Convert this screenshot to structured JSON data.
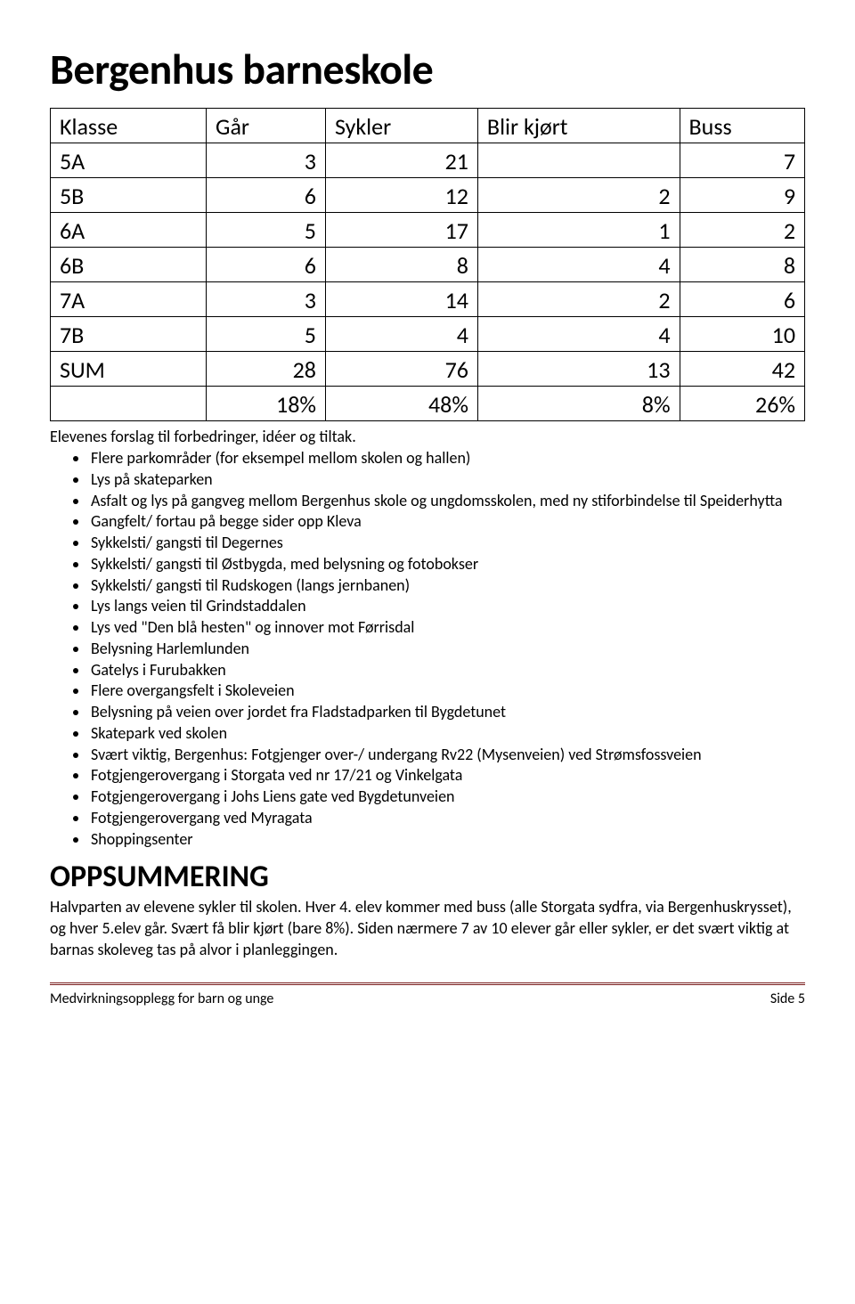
{
  "title": "Bergenhus barneskole",
  "table": {
    "columns": [
      "Klasse",
      "Går",
      "Sykler",
      "Blir kjørt",
      "Buss"
    ],
    "rows": [
      [
        "5A",
        "3",
        "21",
        "",
        "7"
      ],
      [
        "5B",
        "6",
        "12",
        "2",
        "9"
      ],
      [
        "6A",
        "5",
        "17",
        "1",
        "2"
      ],
      [
        "6B",
        "6",
        "8",
        "4",
        "8"
      ],
      [
        "7A",
        "3",
        "14",
        "2",
        "6"
      ],
      [
        "7B",
        "5",
        "4",
        "4",
        "10"
      ],
      [
        "SUM",
        "28",
        "76",
        "13",
        "42"
      ],
      [
        "",
        "18%",
        "48%",
        "8%",
        "26%"
      ]
    ],
    "col_align": [
      "left",
      "right",
      "right",
      "right",
      "right"
    ],
    "border_color": "#000000",
    "font_size": 26
  },
  "intro": "Elevenes forslag til forbedringer, idéer og tiltak.",
  "bullets": [
    "Flere parkområder (for eksempel mellom skolen og hallen)",
    "Lys på skateparken",
    "Asfalt og lys på gangveg mellom Bergenhus skole og ungdomsskolen, med ny stiforbindelse til Speiderhytta",
    "Gangfelt/ fortau på begge sider opp Kleva",
    "Sykkelsti/ gangsti til Degernes",
    "Sykkelsti/ gangsti til Østbygda, med belysning og fotobokser",
    "Sykkelsti/ gangsti til Rudskogen (langs jernbanen)",
    "Lys langs veien til Grindstaddalen",
    "Lys ved \"Den blå hesten\" og innover mot Førrisdal",
    "Belysning Harlemlunden",
    "Gatelys i Furubakken",
    "Flere overgangsfelt i Skoleveien",
    "Belysning på veien over jordet fra Fladstadparken til Bygdetunet",
    "Skatepark ved skolen",
    "Svært viktig, Bergenhus: Fotgjenger over-/ undergang Rv22 (Mysenveien) ved Strømsfossveien",
    "Fotgjengerovergang i Storgata ved nr 17/21 og Vinkelgata",
    "Fotgjengerovergang i Johs Liens gate ved Bygdetunveien",
    "Fotgjengerovergang ved Myragata",
    "Shoppingsenter"
  ],
  "summary": {
    "heading": "OPPSUMMERING",
    "text": "Halvparten av elevene sykler til skolen. Hver 4. elev kommer med buss (alle Storgata sydfra, via Bergenhuskrysset), og hver 5.elev går. Svært få blir kjørt (bare 8%). Siden nærmere 7 av 10 elever går eller sykler, er det svært viktig at barnas skoleveg tas på alvor i planleggingen."
  },
  "footer": {
    "left": "Medvirkningsopplegg for barn og unge",
    "right": "Side 5",
    "rule_color": "#7a1e1e"
  }
}
